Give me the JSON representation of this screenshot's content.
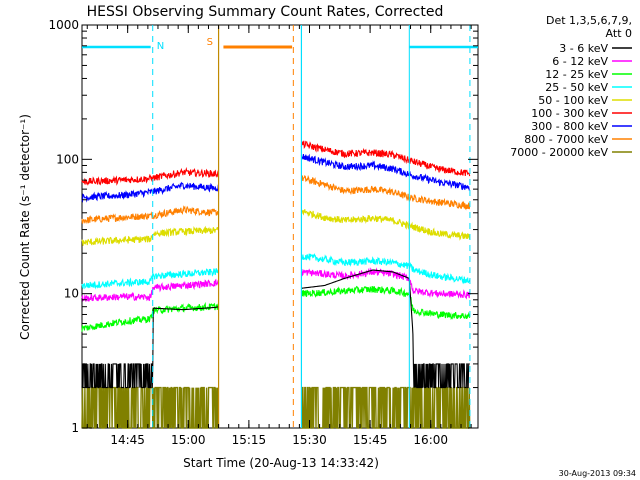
{
  "chart_data": {
    "type": "line",
    "title": "HESSI Observing Summary Count Rates, Corrected",
    "xlabel": "Start Time (20-Aug-13 14:33:42)",
    "ylabel": "Corrected Count Rate (s⁻¹ detector⁻¹)",
    "y_scale": "log",
    "ylim": [
      1,
      1000
    ],
    "xlim_minutes_after_start": [
      0,
      98
    ],
    "x_tick_labels": [
      "14:45",
      "15:00",
      "15:15",
      "15:30",
      "15:45",
      "16:00"
    ],
    "x_tick_minutes": [
      11.3,
      26.3,
      41.3,
      56.3,
      71.3,
      86.3
    ],
    "y_tick_labels": [
      "1",
      "10",
      "100",
      "1000"
    ],
    "y_tick_values": [
      1,
      10,
      100,
      1000
    ],
    "legend_header": [
      "Det 1,3,5,6,7,9,",
      "Att 0"
    ],
    "legend_position": "right",
    "data_gap_minutes": [
      33.8,
      54.3
    ],
    "orbit_annotations": [
      {
        "label": "N",
        "color": "#00e0ff",
        "start": 17.5,
        "end": 17.5,
        "bar_segments": [
          [
            0,
            17.0
          ],
          [
            81.0,
            98
          ]
        ]
      },
      {
        "label": "S",
        "color": "#ff8000",
        "start": 33.8,
        "end": 52.0,
        "bar_segments": [
          [
            35.0,
            52.0
          ]
        ]
      }
    ],
    "series": [
      {
        "name": "3 - 6 keV",
        "color": "#000000",
        "x": [
          0,
          10,
          17,
          17.6,
          25,
          33,
          54.6,
          60,
          65,
          72,
          77,
          81,
          82,
          88,
          96
        ],
        "y": [
          2.4,
          2.5,
          2.4,
          7.8,
          7.6,
          7.9,
          11,
          11.5,
          13,
          15,
          14.5,
          13,
          4.5,
          2.8,
          2.4
        ]
      },
      {
        "name": "6 - 12 keV",
        "color": "#ff00ff",
        "x": [
          0,
          10,
          17,
          17.6,
          25,
          33,
          54.6,
          60,
          65,
          72,
          77,
          81,
          82,
          88,
          96
        ],
        "y": [
          9.2,
          9.5,
          9.4,
          11,
          11.5,
          12,
          14.5,
          14,
          13.5,
          14.5,
          14,
          13,
          10.5,
          10,
          9.8
        ]
      },
      {
        "name": "12 - 25 keV",
        "color": "#00ff00",
        "x": [
          0,
          10,
          17,
          17.6,
          25,
          33,
          54.6,
          60,
          65,
          72,
          77,
          81,
          82,
          88,
          96
        ],
        "y": [
          5.5,
          6.2,
          6.5,
          7.5,
          7.8,
          8,
          10,
          10.2,
          10.5,
          10.8,
          10.5,
          10,
          7.5,
          7,
          6.8
        ]
      },
      {
        "name": "25 - 50 keV",
        "color": "#00ffff",
        "x": [
          0,
          10,
          17,
          17.6,
          25,
          33,
          54.6,
          60,
          65,
          72,
          77,
          81,
          82,
          88,
          96
        ],
        "y": [
          11.5,
          12,
          12.3,
          13.5,
          14,
          14.5,
          19,
          18,
          17,
          17.5,
          17,
          16,
          15,
          13.5,
          12.5
        ]
      },
      {
        "name": "50 - 100 keV",
        "color": "#dddd00",
        "x": [
          0,
          10,
          17,
          17.6,
          25,
          33,
          54.6,
          60,
          65,
          72,
          77,
          81,
          88,
          96
        ],
        "y": [
          24,
          25,
          25.5,
          28,
          29,
          29.5,
          41,
          37,
          35,
          36.5,
          35,
          32,
          28,
          26.5
        ]
      },
      {
        "name": "100 - 300 keV",
        "color": "#ff0000",
        "x": [
          0,
          10,
          17,
          25,
          33,
          54.6,
          60,
          65,
          72,
          77,
          81,
          88,
          96
        ],
        "y": [
          68,
          70,
          72,
          80,
          78,
          130,
          118,
          110,
          112,
          108,
          98,
          85,
          78
        ]
      },
      {
        "name": "300 - 800 keV",
        "color": "#0000ff",
        "x": [
          0,
          10,
          17,
          25,
          33,
          54.6,
          60,
          65,
          72,
          77,
          81,
          88,
          96
        ],
        "y": [
          52,
          54,
          57,
          64,
          61,
          105,
          95,
          88,
          90,
          85,
          77,
          68,
          62
        ]
      },
      {
        "name": "800 - 7000 keV",
        "color": "#ff8000",
        "x": [
          0,
          10,
          17,
          25,
          33,
          54.6,
          60,
          65,
          72,
          77,
          81,
          88,
          96
        ],
        "y": [
          35,
          37,
          38,
          42,
          40,
          72,
          65,
          58,
          60,
          57,
          52,
          48,
          45
        ]
      },
      {
        "name": "7000 - 20000 keV",
        "color": "#808000",
        "x": [
          0,
          10,
          17,
          25,
          33,
          54.6,
          60,
          65,
          72,
          77,
          81,
          88,
          96
        ],
        "y": [
          1,
          1.4,
          1.6,
          1.6,
          1.6,
          1.3,
          1.5,
          1.6,
          1.6,
          1.5,
          1.3,
          1,
          1
        ]
      }
    ],
    "date_stamp": "30-Aug-2013 09:34"
  }
}
